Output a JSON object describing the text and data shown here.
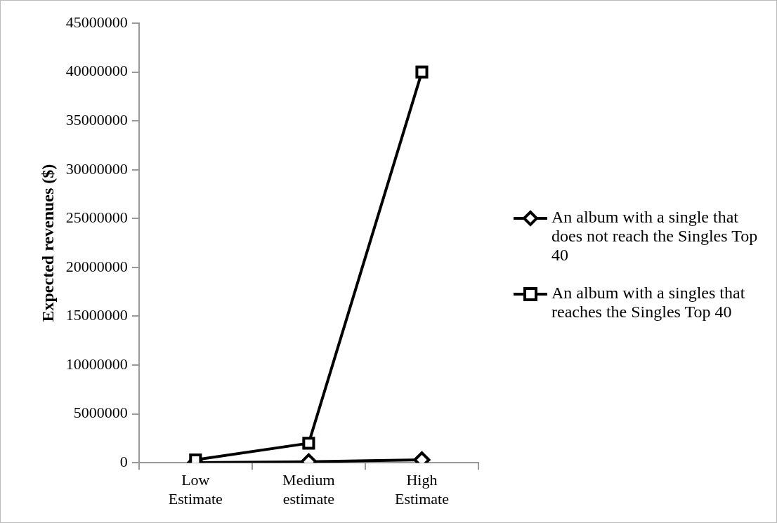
{
  "chart_data": {
    "type": "line",
    "ylabel": "Expected revenues ($)",
    "categories": [
      "Low Estimate",
      "Medium estimate",
      "High Estimate"
    ],
    "series": [
      {
        "name": "An album with a single that does not reach the Singles Top 40",
        "color": "#000000",
        "marker": "diamond",
        "values": [
          20000,
          100000,
          300000
        ]
      },
      {
        "name": "An album with a singles that reaches the Singles Top 40",
        "color": "#000000",
        "marker": "square",
        "values": [
          300000,
          2000000,
          40000000
        ]
      }
    ],
    "ylim": [
      0,
      45000000
    ],
    "yticks": [
      0,
      5000000,
      10000000,
      15000000,
      20000000,
      25000000,
      30000000,
      35000000,
      40000000,
      45000000
    ],
    "grid": false,
    "legend": "right",
    "line_style": "solid"
  }
}
